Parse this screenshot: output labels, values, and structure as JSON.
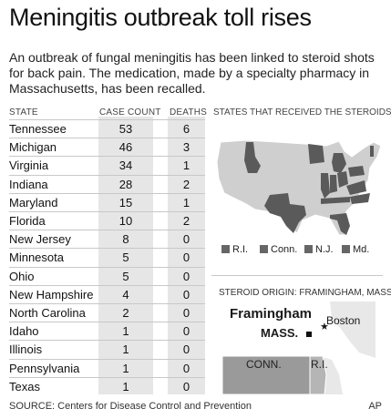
{
  "title": "Meningitis outbreak toll rises",
  "subtitle": "An outbreak of fungal meningitis has been linked to steroid shots for back pain. The medication, made by a specialty pharmacy in Massachusetts, has been recalled.",
  "source": "SOURCE: Centers for Disease Control and Prevention",
  "credit": "AP",
  "colors": {
    "column_bg": "#e6e6e6",
    "state_fill": "#6b6b6b",
    "map_light": "#cfcfcf",
    "map_dark": "#5a5a5a"
  },
  "chart_data": {
    "type": "table",
    "columns": [
      "STATE",
      "CASE COUNT",
      "DEATHS"
    ],
    "rows": [
      {
        "state": "Tennessee",
        "cases": 53,
        "deaths": 6
      },
      {
        "state": "Michigan",
        "cases": 46,
        "deaths": 3
      },
      {
        "state": "Virginia",
        "cases": 34,
        "deaths": 1
      },
      {
        "state": "Indiana",
        "cases": 28,
        "deaths": 2
      },
      {
        "state": "Maryland",
        "cases": 15,
        "deaths": 1
      },
      {
        "state": "Florida",
        "cases": 10,
        "deaths": 2
      },
      {
        "state": "New Jersey",
        "cases": 8,
        "deaths": 0
      },
      {
        "state": "Minnesota",
        "cases": 5,
        "deaths": 0
      },
      {
        "state": "Ohio",
        "cases": 5,
        "deaths": 0
      },
      {
        "state": "New Hampshire",
        "cases": 4,
        "deaths": 0
      },
      {
        "state": "North Carolina",
        "cases": 2,
        "deaths": 0
      },
      {
        "state": "Idaho",
        "cases": 1,
        "deaths": 0
      },
      {
        "state": "Illinois",
        "cases": 1,
        "deaths": 0
      },
      {
        "state": "Pennsylvania",
        "cases": 1,
        "deaths": 0
      },
      {
        "state": "Texas",
        "cases": 1,
        "deaths": 0
      }
    ]
  },
  "map": {
    "header": "STATES THAT RECEIVED THE STEROIDS",
    "legend": [
      "R.I.",
      "Conn.",
      "N.J.",
      "Md."
    ]
  },
  "origin_map": {
    "header": "STEROID ORIGIN: FRAMINGHAM, MASS.",
    "labels": {
      "framingham": "Framingham",
      "boston": "Boston",
      "mass": "MASS.",
      "conn": "CONN.",
      "ri": "R.I."
    }
  }
}
